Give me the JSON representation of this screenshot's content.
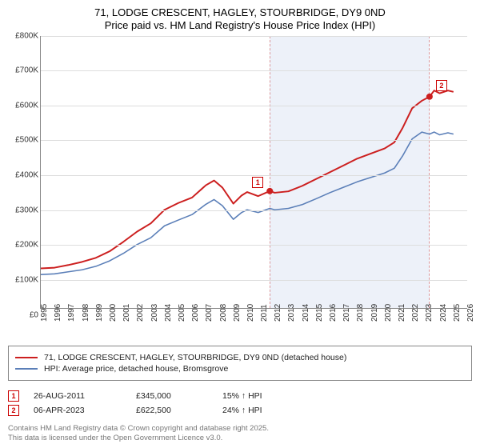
{
  "title": {
    "line1": "71, LODGE CRESCENT, HAGLEY, STOURBRIDGE, DY9 0ND",
    "line2": "Price paid vs. HM Land Registry's House Price Index (HPI)"
  },
  "chart": {
    "type": "line",
    "background_color": "#ffffff",
    "grid_color": "#dddddd",
    "axis_color": "#888888",
    "x": {
      "min": 1995,
      "max": 2026,
      "ticks": [
        1995,
        1996,
        1997,
        1998,
        1999,
        2000,
        2001,
        2002,
        2003,
        2004,
        2005,
        2006,
        2007,
        2008,
        2009,
        2010,
        2011,
        2012,
        2013,
        2014,
        2015,
        2016,
        2017,
        2018,
        2019,
        2020,
        2021,
        2022,
        2023,
        2024,
        2025,
        2026
      ],
      "tick_fontsize": 10,
      "rotation": -90
    },
    "y": {
      "min": 0,
      "max": 800,
      "ticks": [
        0,
        100,
        200,
        300,
        400,
        500,
        600,
        700,
        800
      ],
      "tick_labels": [
        "£0",
        "£100K",
        "£200K",
        "£300K",
        "£400K",
        "£500K",
        "£600K",
        "£700K",
        "£800K"
      ],
      "tick_fontsize": 10
    },
    "shade": {
      "start": 2011.65,
      "end": 2023.26,
      "fill_color": "rgba(140,170,220,0.16)",
      "border_color": "rgba(200,60,60,0.5)",
      "border_dash": "4,3"
    },
    "series": [
      {
        "name": "price_paid",
        "label": "71, LODGE CRESCENT, HAGLEY, STOURBRIDGE, DY9 0ND (detached house)",
        "color": "#cc1f1f",
        "line_width": 2,
        "points": [
          [
            1995,
            118
          ],
          [
            1996,
            120
          ],
          [
            1997,
            128
          ],
          [
            1998,
            137
          ],
          [
            1999,
            149
          ],
          [
            2000,
            168
          ],
          [
            2001,
            196
          ],
          [
            2002,
            226
          ],
          [
            2003,
            250
          ],
          [
            2004,
            290
          ],
          [
            2005,
            310
          ],
          [
            2006,
            326
          ],
          [
            2007,
            362
          ],
          [
            2007.6,
            376
          ],
          [
            2008.2,
            355
          ],
          [
            2009,
            308
          ],
          [
            2009.6,
            332
          ],
          [
            2010,
            342
          ],
          [
            2010.8,
            330
          ],
          [
            2011.65,
            345
          ],
          [
            2012,
            340
          ],
          [
            2013,
            344
          ],
          [
            2014,
            360
          ],
          [
            2015,
            380
          ],
          [
            2016,
            400
          ],
          [
            2017,
            420
          ],
          [
            2018,
            440
          ],
          [
            2019,
            455
          ],
          [
            2020,
            470
          ],
          [
            2020.7,
            488
          ],
          [
            2021.3,
            530
          ],
          [
            2022,
            588
          ],
          [
            2022.7,
            610
          ],
          [
            2023.26,
            622
          ],
          [
            2023.6,
            640
          ],
          [
            2024,
            632
          ],
          [
            2024.6,
            640
          ],
          [
            2025,
            636
          ]
        ]
      },
      {
        "name": "hpi",
        "label": "HPI: Average price, detached house, Bromsgrove",
        "color": "#5b7fb8",
        "line_width": 1.6,
        "points": [
          [
            1995,
            100
          ],
          [
            1996,
            102
          ],
          [
            1997,
            108
          ],
          [
            1998,
            114
          ],
          [
            1999,
            124
          ],
          [
            2000,
            140
          ],
          [
            2001,
            162
          ],
          [
            2002,
            188
          ],
          [
            2003,
            208
          ],
          [
            2004,
            243
          ],
          [
            2005,
            260
          ],
          [
            2006,
            276
          ],
          [
            2007,
            306
          ],
          [
            2007.6,
            320
          ],
          [
            2008.2,
            302
          ],
          [
            2009,
            262
          ],
          [
            2009.6,
            282
          ],
          [
            2010,
            290
          ],
          [
            2010.8,
            282
          ],
          [
            2011.65,
            294
          ],
          [
            2012,
            290
          ],
          [
            2013,
            294
          ],
          [
            2014,
            305
          ],
          [
            2015,
            322
          ],
          [
            2016,
            340
          ],
          [
            2017,
            356
          ],
          [
            2018,
            372
          ],
          [
            2019,
            385
          ],
          [
            2020,
            398
          ],
          [
            2020.7,
            412
          ],
          [
            2021.3,
            448
          ],
          [
            2022,
            498
          ],
          [
            2022.7,
            518
          ],
          [
            2023.26,
            512
          ],
          [
            2023.6,
            518
          ],
          [
            2024,
            510
          ],
          [
            2024.6,
            516
          ],
          [
            2025,
            512
          ]
        ]
      }
    ],
    "markers": [
      {
        "id": "1",
        "x": 2011.65,
        "y": 345,
        "point_color": "#cc1f1f",
        "label_offset": [
          -22,
          -22
        ]
      },
      {
        "id": "2",
        "x": 2023.26,
        "y": 622,
        "point_color": "#cc1f1f",
        "label_offset": [
          8,
          -22
        ]
      }
    ]
  },
  "legend": {
    "border_color": "#888888",
    "rows": [
      {
        "color": "#cc1f1f",
        "label": "71, LODGE CRESCENT, HAGLEY, STOURBRIDGE, DY9 0ND (detached house)"
      },
      {
        "color": "#5b7fb8",
        "label": "HPI: Average price, detached house, Bromsgrove"
      }
    ]
  },
  "transactions": [
    {
      "id": "1",
      "date": "26-AUG-2011",
      "price": "£345,000",
      "diff": "15% ↑ HPI"
    },
    {
      "id": "2",
      "date": "06-APR-2023",
      "price": "£622,500",
      "diff": "24% ↑ HPI"
    }
  ],
  "footer": {
    "line1": "Contains HM Land Registry data © Crown copyright and database right 2025.",
    "line2": "This data is licensed under the Open Government Licence v3.0."
  }
}
